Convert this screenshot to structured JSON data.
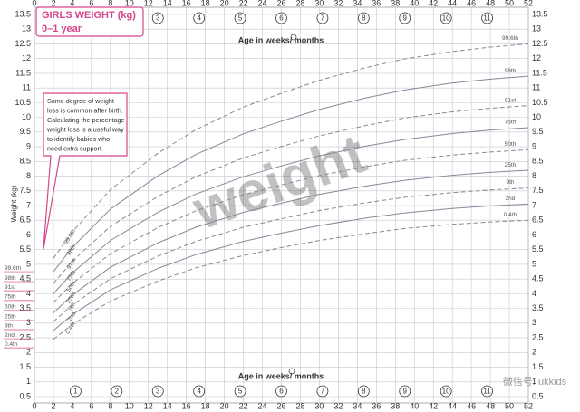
{
  "chart_data": {
    "type": "line",
    "title": "GIRLS WEIGHT (kg)",
    "subtitle": "0–1 year",
    "y_label": "Weight (kg)",
    "x_label": "Age in weeks/ months",
    "annotation": [
      "Some degree of weight",
      "loss is common after birth.",
      "Calculating the percentage",
      "weight loss is a useful way",
      "to identify babies who",
      "need extra support."
    ],
    "watermark": "weight",
    "wechat_watermark": "微信号: ukkids",
    "x": [
      2,
      4,
      8,
      13,
      17,
      22,
      26,
      30,
      35,
      39,
      44,
      48,
      52
    ],
    "series": [
      {
        "name": "99.6th",
        "color": "#8c8598",
        "dashed": true,
        "values": [
          5.2,
          6.11,
          7.54,
          8.78,
          9.58,
          10.35,
          10.82,
          11.26,
          11.7,
          11.99,
          12.24,
          12.39,
          12.5
        ]
      },
      {
        "name": "98th",
        "color": "#8c8598",
        "dashed": false,
        "values": [
          4.75,
          5.58,
          6.88,
          8.01,
          8.74,
          9.44,
          9.87,
          10.27,
          10.67,
          10.93,
          11.17,
          11.3,
          11.4
        ]
      },
      {
        "name": "91st",
        "color": "#8c8598",
        "dashed": true,
        "values": [
          4.35,
          5.11,
          6.29,
          7.31,
          7.98,
          8.62,
          9.01,
          9.37,
          9.73,
          9.98,
          10.19,
          10.31,
          10.4
        ]
      },
      {
        "name": "75th",
        "color": "#8c8598",
        "dashed": false,
        "values": [
          4.0,
          4.71,
          5.81,
          6.77,
          7.39,
          7.98,
          8.35,
          8.69,
          9.03,
          9.25,
          9.45,
          9.57,
          9.65
        ]
      },
      {
        "name": "50th",
        "color": "#8c8598",
        "dashed": true,
        "values": [
          3.7,
          4.35,
          5.36,
          6.25,
          6.82,
          7.37,
          7.7,
          8.02,
          8.33,
          8.54,
          8.72,
          8.82,
          8.9
        ]
      },
      {
        "name": "25th",
        "color": "#8c8598",
        "dashed": false,
        "values": [
          3.35,
          3.96,
          4.9,
          5.73,
          6.26,
          6.77,
          7.08,
          7.38,
          7.67,
          7.86,
          8.03,
          8.13,
          8.2
        ]
      },
      {
        "name": "9th",
        "color": "#8c8598",
        "dashed": true,
        "values": [
          3.05,
          3.62,
          4.51,
          5.28,
          5.78,
          6.26,
          6.55,
          6.83,
          7.1,
          7.28,
          7.44,
          7.53,
          7.6
        ]
      },
      {
        "name": "2nd",
        "color": "#8c8598",
        "dashed": false,
        "values": [
          2.75,
          3.29,
          4.13,
          4.86,
          5.33,
          5.78,
          6.06,
          6.32,
          6.58,
          6.75,
          6.9,
          6.99,
          7.05
        ]
      },
      {
        "name": "0.4th",
        "color": "#8c8598",
        "dashed": true,
        "values": [
          2.45,
          2.96,
          3.75,
          4.43,
          4.88,
          5.3,
          5.57,
          5.81,
          6.05,
          6.22,
          6.36,
          6.44,
          6.5
        ]
      }
    ],
    "birth_values": [
      4.75,
      4.41,
      4.1,
      3.77,
      3.43,
      3.09,
      2.78,
      2.47,
      2.16
    ],
    "birth_color": "#d4468a",
    "month_markers_top": [
      3,
      4,
      5,
      6,
      7,
      8,
      9,
      10,
      11
    ],
    "month_markers_bottom": [
      1,
      2,
      3,
      4,
      5,
      6,
      7,
      8,
      9,
      10,
      11
    ],
    "xlim": [
      0,
      52
    ],
    "ylim": [
      0.5,
      13.5
    ],
    "xticks": [
      0,
      2,
      4,
      6,
      8,
      10,
      12,
      14,
      16,
      18,
      20,
      22,
      24,
      26,
      28,
      30,
      32,
      34,
      36,
      38,
      40,
      42,
      44,
      46,
      48,
      50,
      52
    ],
    "yticks": [
      0.5,
      1,
      1.5,
      2,
      2.5,
      3,
      3.5,
      4,
      4.5,
      5,
      5.5,
      6,
      6.5,
      7,
      7.5,
      8,
      8.5,
      9,
      9.5,
      10,
      10.5,
      11,
      11.5,
      12,
      12.5,
      13,
      13.5
    ],
    "grid": true,
    "accent_color": "#d4468a"
  }
}
